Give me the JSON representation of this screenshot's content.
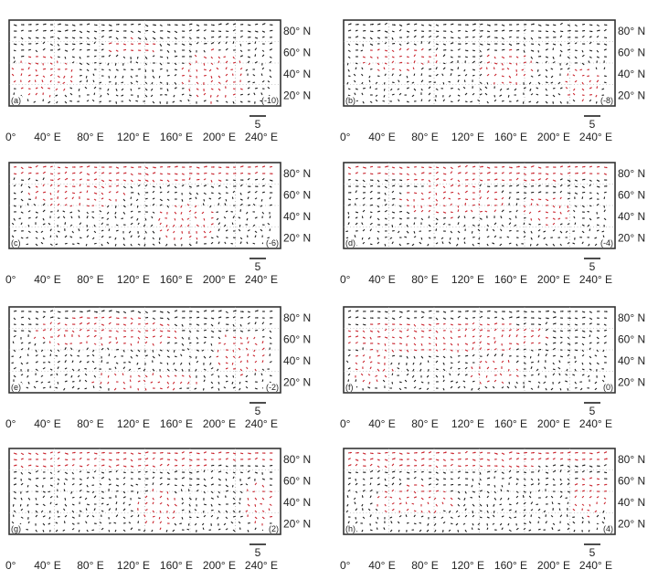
{
  "chart_data": {
    "type": "vector-map-panels",
    "x_ticks": [
      "0°",
      "40° E",
      "80° E",
      "120° E",
      "160° E",
      "200° E",
      "240° E"
    ],
    "y_ticks": [
      "20° N",
      "40° N",
      "60° N",
      "80° N"
    ],
    "reference_vector": "5",
    "colors": {
      "significant": "#c8202a",
      "vectors": "#1a1a1a",
      "frame": "#333333"
    },
    "panels": [
      {
        "letter": "(a)",
        "lag": "(-10)"
      },
      {
        "letter": "(b)",
        "lag": "(-8)"
      },
      {
        "letter": "(c)",
        "lag": "(-6)"
      },
      {
        "letter": "(d)",
        "lag": "(-4)"
      },
      {
        "letter": "(e)",
        "lag": "(-2)"
      },
      {
        "letter": "(f)",
        "lag": "(0)"
      },
      {
        "letter": "(g)",
        "lag": "(2)"
      },
      {
        "letter": "(h)",
        "lag": "(4)"
      }
    ]
  }
}
